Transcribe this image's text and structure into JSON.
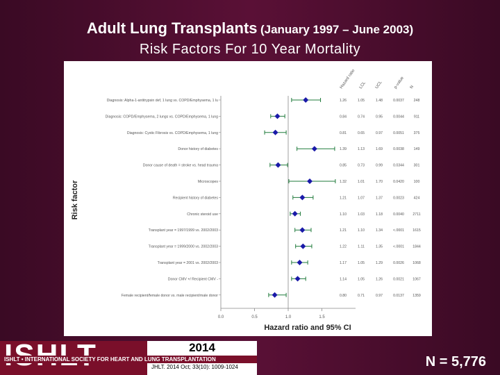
{
  "title_main": "Adult Lung Transplants",
  "title_range": "(January 1997 – June 2003)",
  "subtitle": "Risk Factors For 10 Year Mortality",
  "footer": {
    "logo": "ISHLT",
    "society": "ISHLT • INTERNATIONAL SOCIETY FOR HEART AND LUNG TRANSPLANTATION",
    "year": "2014",
    "citation": "JHLT. 2014 Oct; 33(10): 1009-1024"
  },
  "n_label": "N = 5,776",
  "colors": {
    "background": "#4a0d2e",
    "point": "#1a1aa8",
    "ci": "#1e7a3a"
  },
  "chart_data": {
    "type": "forest",
    "xlabel": "Hazard ratio and 95% CI",
    "ylabel": "Risk factor",
    "xlim": [
      0.0,
      2.0
    ],
    "xticks": [
      "0.0",
      "0.5",
      "1.0",
      "1.5"
    ],
    "reference_line": 1.0,
    "column_headers": [
      "Hazard ratio",
      "LCL",
      "UCL",
      "p-value",
      "N"
    ],
    "rows": [
      {
        "label": "Diagnosis: Alpha-1-antitrypsin def, 1 lung vs. COPD/Emphysema, 1 lu",
        "hr": 1.26,
        "lcl": "1.05",
        "ucl": "1.48",
        "p": "0.0037",
        "n": "248"
      },
      {
        "label": "Diagnosis: COPD/Emphysema, 2 lungs vs. COPD/Emphysema, 1 lung",
        "hr": 0.84,
        "lcl": "0.74",
        "ucl": "0.95",
        "p": "0.0044",
        "n": "911"
      },
      {
        "label": "Diagnosis: Cystic Fibrosis vs. COPD/Emphysema, 1 lung",
        "hr": 0.81,
        "lcl": "0.65",
        "ucl": "0.97",
        "p": "0.0051",
        "n": "375"
      },
      {
        "label": "Donor history of diabetes",
        "hr": 1.39,
        "lcl": "1.13",
        "ucl": "1.69",
        "p": "0.0038",
        "n": "149"
      },
      {
        "label": "Donor cause of death = stroke vs. head trauma",
        "hr": 0.85,
        "lcl": "0.73",
        "ucl": "0.99",
        "p": "0.0344",
        "n": "301"
      },
      {
        "label": "Microscopes",
        "hr": 1.32,
        "lcl": "1.01",
        "ucl": "1.70",
        "p": "0.0420",
        "n": "100"
      },
      {
        "label": "Recipient history of diabetes",
        "hr": 1.21,
        "lcl": "1.07",
        "ucl": "1.37",
        "p": "0.0023",
        "n": "424"
      },
      {
        "label": "Chronic steroid use",
        "hr": 1.1,
        "lcl": "1.03",
        "ucl": "1.18",
        "p": "0.0040",
        "n": "2711"
      },
      {
        "label": "Transplant year = 1997/1999 vs. 2002/2003",
        "hr": 1.21,
        "lcl": "1.10",
        "ucl": "1.34",
        "p": "<.0001",
        "n": "1615"
      },
      {
        "label": "Transplant year = 1999/2000 vs. 2002/2003",
        "hr": 1.22,
        "lcl": "1.11",
        "ucl": "1.35",
        "p": "<.0001",
        "n": "1844"
      },
      {
        "label": "Transplant year = 2001 vs. 2002/2003",
        "hr": 1.17,
        "lcl": "1.05",
        "ucl": "1.29",
        "p": "0.0026",
        "n": "1068"
      },
      {
        "label": "Donor CMV +/ Recipient CMV -",
        "hr": 1.14,
        "lcl": "1.05",
        "ucl": "1.26",
        "p": "0.0021",
        "n": "1067"
      },
      {
        "label": "Female recipient/female donor vs. male recipient/male donor",
        "hr": 0.8,
        "lcl": "0.71",
        "ucl": "0.97",
        "p": "0.0137",
        "n": "1359"
      }
    ]
  }
}
